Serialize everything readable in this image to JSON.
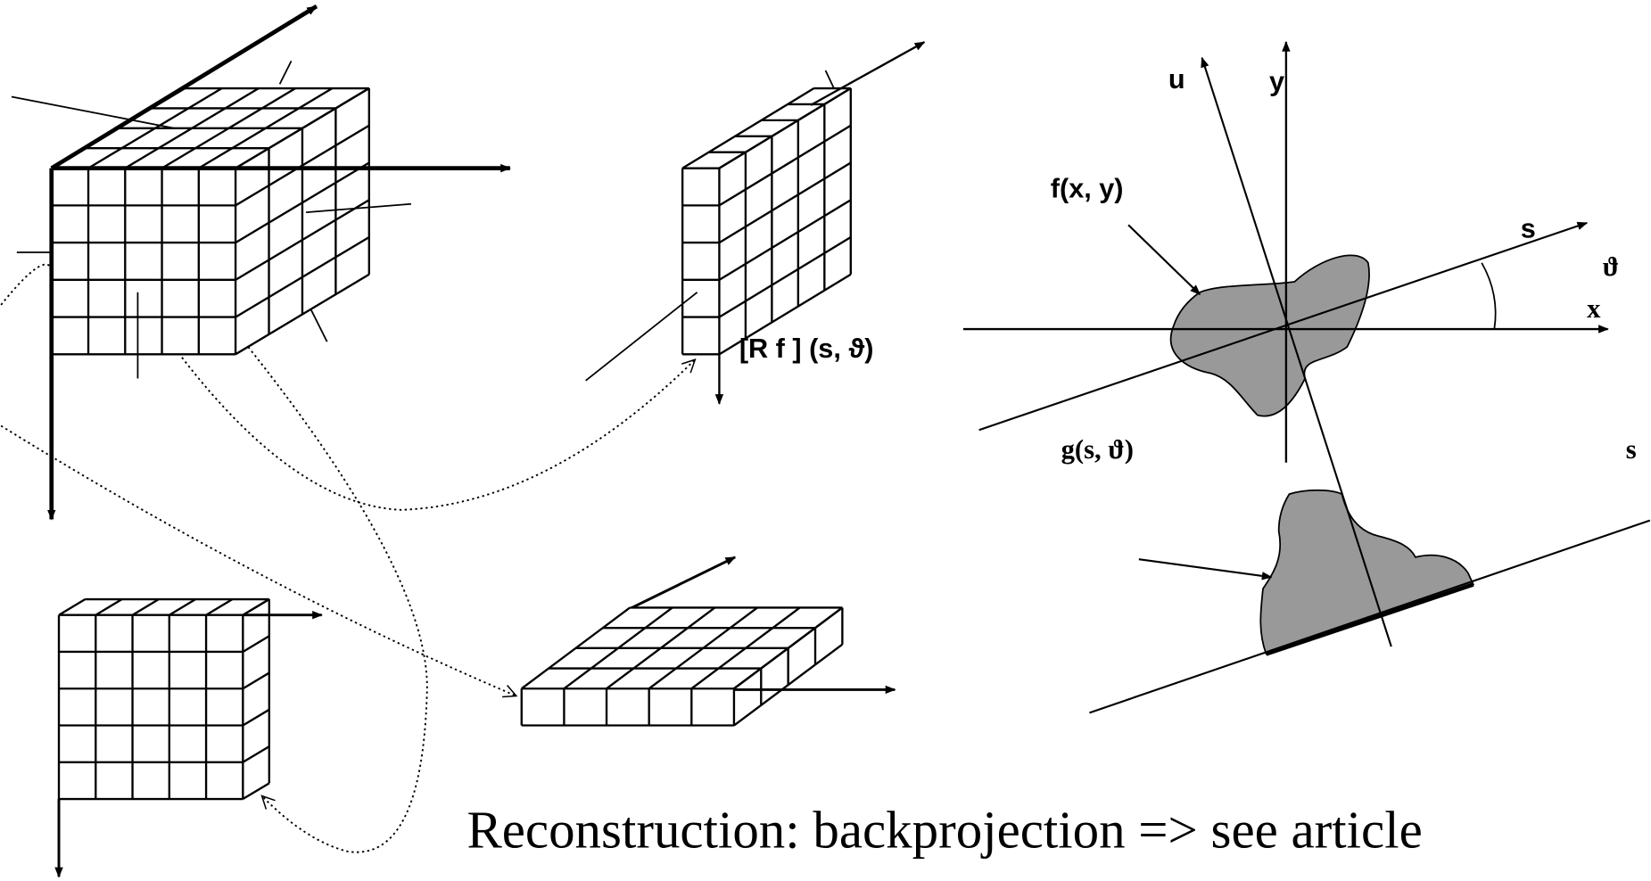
{
  "labels": {
    "u": "u",
    "y": "y",
    "f": "f(x, y)",
    "s_axis": "s",
    "theta": "ϑ",
    "x": "x",
    "radon": "[R f ] (s, ϑ)",
    "g": "g(s, ϑ)",
    "s_right": "s"
  },
  "caption": "Reconstruction: backprojection => see article"
}
